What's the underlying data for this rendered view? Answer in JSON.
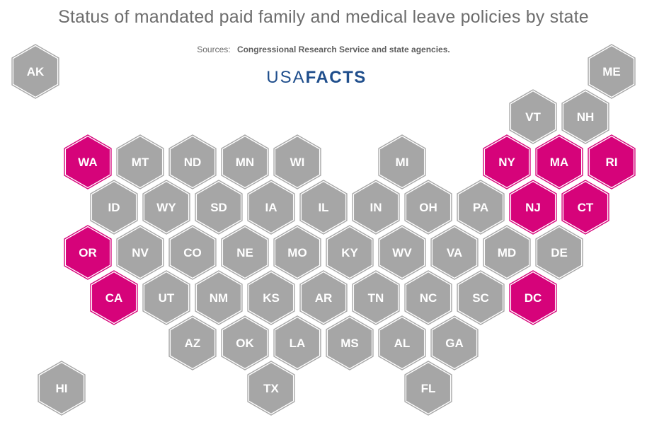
{
  "title": "Status of mandated paid family and medical leave policies by state",
  "sources": {
    "label": "Sources:",
    "text": "Congressional Research Service and state agencies."
  },
  "logo": {
    "part1": "USA",
    "part2": "FACTS"
  },
  "colors": {
    "paid_leave_mandated": "#d6037a",
    "no_mandate": "#a6a6a6",
    "outline": "#ffffff",
    "logo": "#1f4e8c"
  },
  "states": [
    {
      "abbr": "AK",
      "col": 0,
      "row": 0,
      "status": "none"
    },
    {
      "abbr": "ME",
      "col": 11,
      "row": 0,
      "status": "none"
    },
    {
      "abbr": "VT",
      "col": 9.5,
      "row": 1,
      "status": "none"
    },
    {
      "abbr": "NH",
      "col": 10.5,
      "row": 1,
      "status": "none"
    },
    {
      "abbr": "WA",
      "col": 1,
      "row": 2,
      "status": "mandated"
    },
    {
      "abbr": "MT",
      "col": 2,
      "row": 2,
      "status": "none"
    },
    {
      "abbr": "ND",
      "col": 3,
      "row": 2,
      "status": "none"
    },
    {
      "abbr": "MN",
      "col": 4,
      "row": 2,
      "status": "none"
    },
    {
      "abbr": "WI",
      "col": 5,
      "row": 2,
      "status": "none"
    },
    {
      "abbr": "MI",
      "col": 7,
      "row": 2,
      "status": "none"
    },
    {
      "abbr": "NY",
      "col": 9,
      "row": 2,
      "status": "mandated"
    },
    {
      "abbr": "MA",
      "col": 10,
      "row": 2,
      "status": "mandated"
    },
    {
      "abbr": "RI",
      "col": 11,
      "row": 2,
      "status": "mandated"
    },
    {
      "abbr": "ID",
      "col": 1.5,
      "row": 3,
      "status": "none"
    },
    {
      "abbr": "WY",
      "col": 2.5,
      "row": 3,
      "status": "none"
    },
    {
      "abbr": "SD",
      "col": 3.5,
      "row": 3,
      "status": "none"
    },
    {
      "abbr": "IA",
      "col": 4.5,
      "row": 3,
      "status": "none"
    },
    {
      "abbr": "IL",
      "col": 5.5,
      "row": 3,
      "status": "none"
    },
    {
      "abbr": "IN",
      "col": 6.5,
      "row": 3,
      "status": "none"
    },
    {
      "abbr": "OH",
      "col": 7.5,
      "row": 3,
      "status": "none"
    },
    {
      "abbr": "PA",
      "col": 8.5,
      "row": 3,
      "status": "none"
    },
    {
      "abbr": "NJ",
      "col": 9.5,
      "row": 3,
      "status": "mandated"
    },
    {
      "abbr": "CT",
      "col": 10.5,
      "row": 3,
      "status": "mandated"
    },
    {
      "abbr": "OR",
      "col": 1,
      "row": 4,
      "status": "mandated"
    },
    {
      "abbr": "NV",
      "col": 2,
      "row": 4,
      "status": "none"
    },
    {
      "abbr": "CO",
      "col": 3,
      "row": 4,
      "status": "none"
    },
    {
      "abbr": "NE",
      "col": 4,
      "row": 4,
      "status": "none"
    },
    {
      "abbr": "MO",
      "col": 5,
      "row": 4,
      "status": "none"
    },
    {
      "abbr": "KY",
      "col": 6,
      "row": 4,
      "status": "none"
    },
    {
      "abbr": "WV",
      "col": 7,
      "row": 4,
      "status": "none"
    },
    {
      "abbr": "VA",
      "col": 8,
      "row": 4,
      "status": "none"
    },
    {
      "abbr": "MD",
      "col": 9,
      "row": 4,
      "status": "none"
    },
    {
      "abbr": "DE",
      "col": 10,
      "row": 4,
      "status": "none"
    },
    {
      "abbr": "CA",
      "col": 1.5,
      "row": 5,
      "status": "mandated"
    },
    {
      "abbr": "UT",
      "col": 2.5,
      "row": 5,
      "status": "none"
    },
    {
      "abbr": "NM",
      "col": 3.5,
      "row": 5,
      "status": "none"
    },
    {
      "abbr": "KS",
      "col": 4.5,
      "row": 5,
      "status": "none"
    },
    {
      "abbr": "AR",
      "col": 5.5,
      "row": 5,
      "status": "none"
    },
    {
      "abbr": "TN",
      "col": 6.5,
      "row": 5,
      "status": "none"
    },
    {
      "abbr": "NC",
      "col": 7.5,
      "row": 5,
      "status": "none"
    },
    {
      "abbr": "SC",
      "col": 8.5,
      "row": 5,
      "status": "none"
    },
    {
      "abbr": "DC",
      "col": 9.5,
      "row": 5,
      "status": "mandated"
    },
    {
      "abbr": "AZ",
      "col": 3,
      "row": 6,
      "status": "none"
    },
    {
      "abbr": "OK",
      "col": 4,
      "row": 6,
      "status": "none"
    },
    {
      "abbr": "LA",
      "col": 5,
      "row": 6,
      "status": "none"
    },
    {
      "abbr": "MS",
      "col": 6,
      "row": 6,
      "status": "none"
    },
    {
      "abbr": "AL",
      "col": 7,
      "row": 6,
      "status": "none"
    },
    {
      "abbr": "GA",
      "col": 8,
      "row": 6,
      "status": "none"
    },
    {
      "abbr": "HI",
      "col": 0.5,
      "row": 7,
      "status": "none"
    },
    {
      "abbr": "TX",
      "col": 4.5,
      "row": 7,
      "status": "none"
    },
    {
      "abbr": "FL",
      "col": 7.5,
      "row": 7,
      "status": "none"
    }
  ]
}
